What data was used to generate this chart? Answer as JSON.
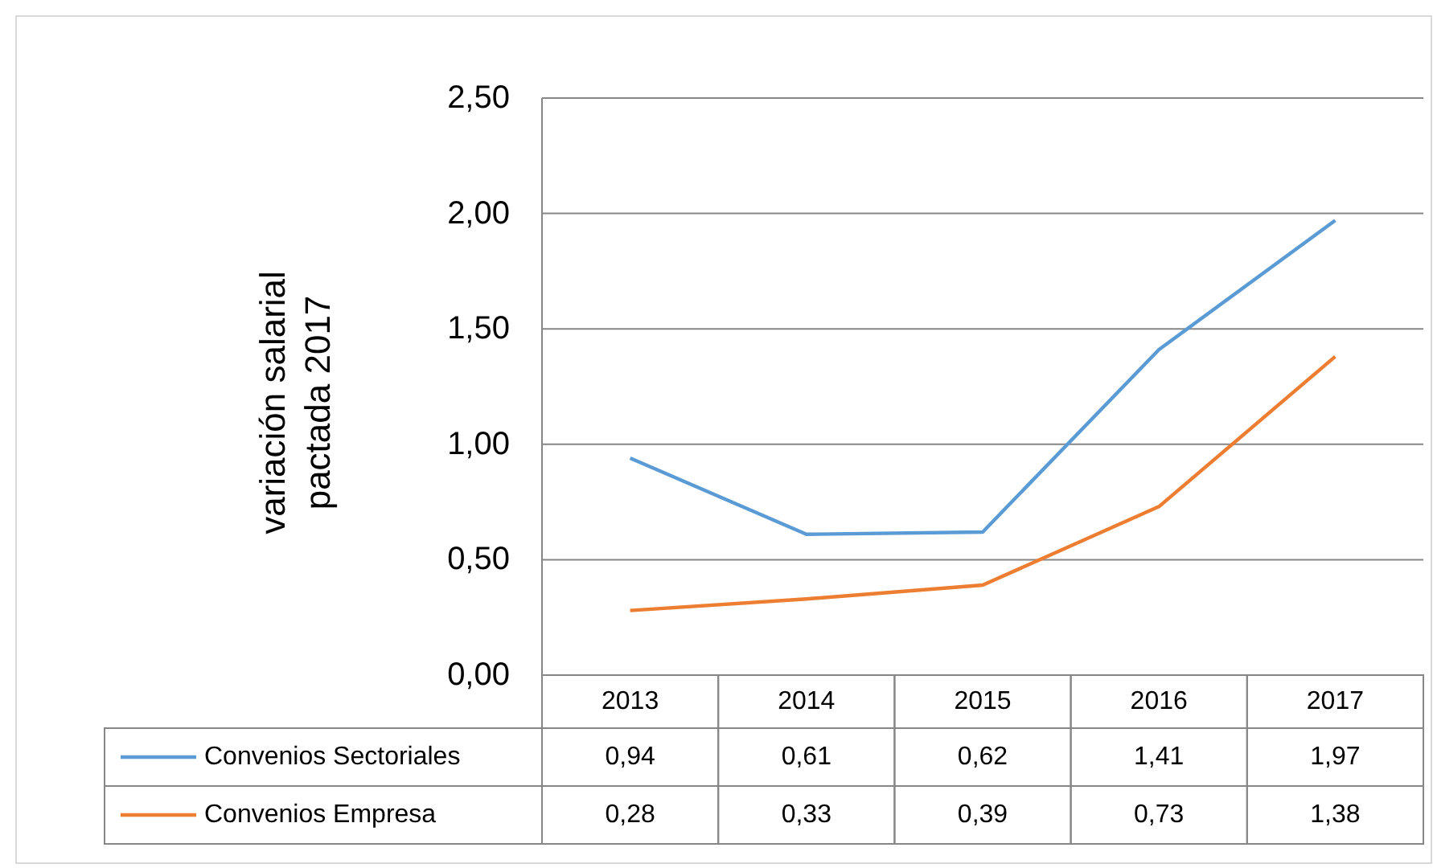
{
  "chart_data": {
    "type": "line",
    "ylabel": "variación salarial\npactada  2017",
    "categories": [
      "2013",
      "2014",
      "2015",
      "2016",
      "2017"
    ],
    "ylim": [
      0,
      2.5
    ],
    "yticks": [
      {
        "value": 0,
        "label": "0,00"
      },
      {
        "value": 0.5,
        "label": "0,50"
      },
      {
        "value": 1,
        "label": "1,00"
      },
      {
        "value": 1.5,
        "label": "1,50"
      },
      {
        "value": 2,
        "label": "2,00"
      },
      {
        "value": 2.5,
        "label": "2,50"
      }
    ],
    "grid": "y",
    "legend": "bottom",
    "marker": "none",
    "line_style": "solid",
    "series": [
      {
        "name": "Convenios Sectoriales",
        "color": "#5b9bd5",
        "values": [
          0.94,
          0.61,
          0.62,
          1.41,
          1.97
        ],
        "value_labels": [
          "0,94",
          "0,61",
          "0,62",
          "1,41",
          "1,97"
        ]
      },
      {
        "name": "Convenios Empresa",
        "color": "#ed7d31",
        "values": [
          0.28,
          0.33,
          0.39,
          0.73,
          1.38
        ],
        "value_labels": [
          "0,28",
          "0,33",
          "0,39",
          "0,73",
          "1,38"
        ]
      }
    ]
  }
}
